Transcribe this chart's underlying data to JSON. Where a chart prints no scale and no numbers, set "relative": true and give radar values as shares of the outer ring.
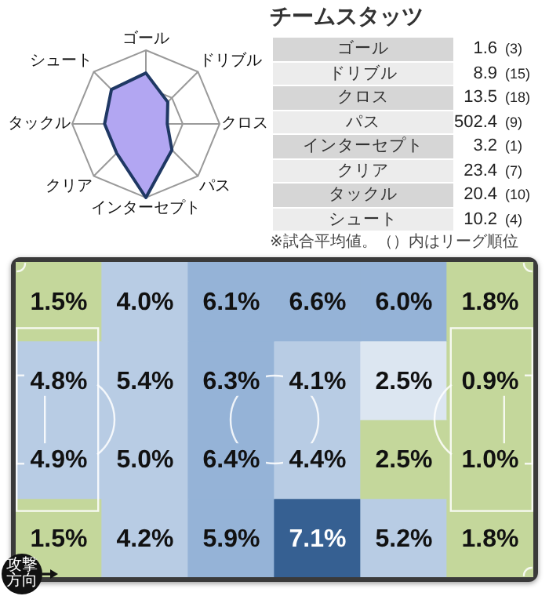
{
  "chart_data": [
    {
      "type": "radar",
      "categories": [
        "ゴール",
        "ドリブル",
        "クロス",
        "パス",
        "インターセプト",
        "クリア",
        "タックル",
        "シュート"
      ],
      "relative": true,
      "grid": true,
      "marker": "none",
      "series": [
        {
          "color": "#b2a6f2",
          "values": [
            0.69,
            0.42,
            0.29,
            0.5,
            1,
            0.56,
            0.56,
            0.66
          ]
        }
      ]
    },
    {
      "type": "other",
      "title": "チームスタッツ",
      "categories": [
        "ゴール",
        "ドリブル",
        "クロス",
        "パス",
        "インターセプト",
        "クリア",
        "タックル",
        "シュート"
      ],
      "data_labels": true,
      "series": [
        {
          "values": [
            1.6,
            8.9,
            13.5,
            502.4,
            3.2,
            23.4,
            20.4,
            10.2
          ]
        },
        {
          "values": [
            3,
            15,
            18,
            9,
            1,
            7,
            10,
            4
          ],
          "value_labels": [
            "(3)",
            "(15)",
            "(18)",
            "(9)",
            "(1)",
            "(7)",
            "(10)",
            "(4)"
          ]
        }
      ],
      "annotations": [
        "※試合平均値。（）内はリーグ順位"
      ]
    },
    {
      "type": "heatmap",
      "categories": [
        null,
        null,
        null,
        null,
        null,
        null
      ],
      "y_categories": [
        null,
        null,
        null,
        null
      ],
      "cells": [
        [
          1.5,
          4.0,
          6.1,
          6.6,
          6.0,
          1.8
        ],
        [
          4.8,
          5.4,
          6.3,
          4.1,
          2.5,
          0.9
        ],
        [
          4.9,
          5.0,
          6.4,
          4.4,
          2.5,
          1.0
        ],
        [
          1.5,
          4.2,
          5.9,
          7.1,
          5.2,
          1.8
        ]
      ],
      "cell_labels": [
        [
          "1.5%",
          "4.0%",
          "6.1%",
          "6.6%",
          "6.0%",
          "1.8%"
        ],
        [
          "4.8%",
          "5.4%",
          "6.3%",
          "4.1%",
          "2.5%",
          "0.9%"
        ],
        [
          "4.9%",
          "5.0%",
          "6.4%",
          "4.4%",
          "2.5%",
          "1.0%"
        ],
        [
          "1.5%",
          "4.2%",
          "5.9%",
          "7.1%",
          "5.2%",
          "1.8%"
        ]
      ],
      "colors": [
        [
          "#c4d79b",
          "#b8cce4",
          "#95b3d7",
          "#95b3d7",
          "#95b3d7",
          "#c4d79b"
        ],
        [
          "#b8cce4",
          "#b8cce4",
          "#95b3d7",
          "#b8cce4",
          "#dce6f1",
          "#c4d79b"
        ],
        [
          "#b8cce4",
          "#b8cce4",
          "#95b3d7",
          "#b8cce4",
          "#c4d79b",
          "#c4d79b"
        ],
        [
          "#c4d79b",
          "#b8cce4",
          "#95b3d7",
          "#366092",
          "#b8cce4",
          "#c4d79b"
        ]
      ],
      "annotations": [
        "攻撃方向"
      ]
    }
  ]
}
